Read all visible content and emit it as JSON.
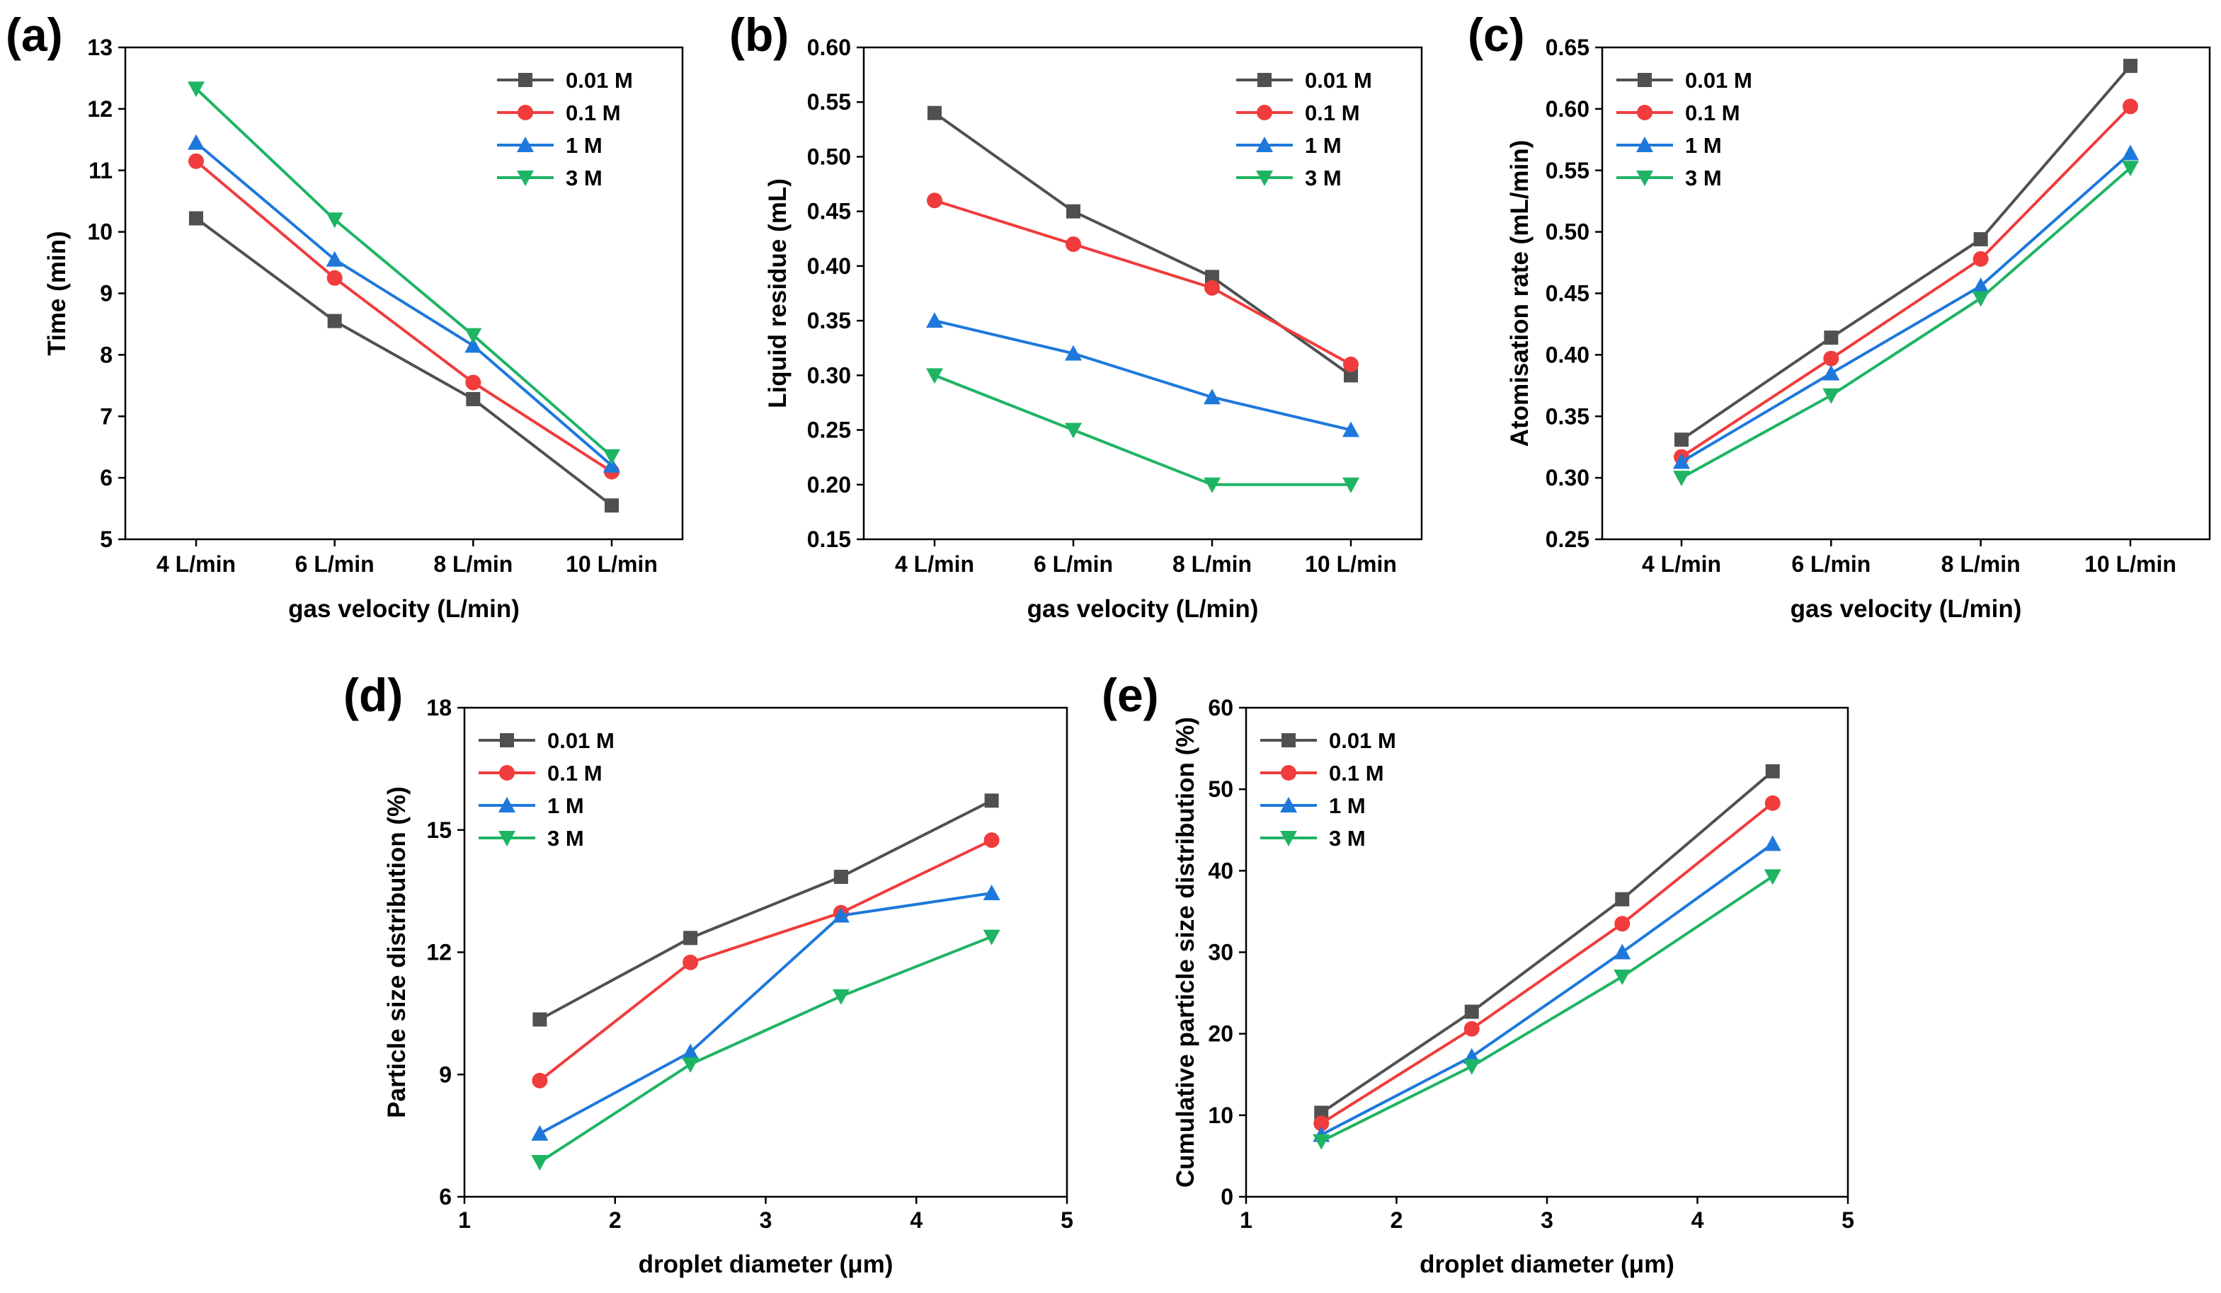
{
  "figure": {
    "colors": {
      "0.01 M": "#505050",
      "0.1 M": "#f03c3c",
      "1 M": "#1e78dc",
      "3 M": "#1eb464"
    },
    "markers": {
      "0.01 M": "square",
      "0.1 M": "circle",
      "1 M": "triangle-up",
      "3 M": "triangle-down"
    }
  },
  "chart_data": [
    {
      "id": "a",
      "panel_label": "(a)",
      "type": "line",
      "categories": [
        "4 L/min",
        "6 L/min",
        "8 L/min",
        "10 L/min"
      ],
      "xlabel": "gas velocity (L/min)",
      "ylabel": "Time (min)",
      "ylim": [
        5,
        13
      ],
      "yticks": [
        "5",
        "6",
        "7",
        "8",
        "9",
        "10",
        "11",
        "12",
        "13"
      ],
      "legend_position": "top-right",
      "series": [
        {
          "name": "0.01 M",
          "values": [
            10.22,
            8.55,
            7.28,
            5.55
          ]
        },
        {
          "name": "0.1 M",
          "values": [
            11.15,
            9.25,
            7.55,
            6.1
          ]
        },
        {
          "name": "1 M",
          "values": [
            11.45,
            9.55,
            8.15,
            6.2
          ]
        },
        {
          "name": "3 M",
          "values": [
            12.33,
            10.2,
            8.32,
            6.35
          ]
        }
      ]
    },
    {
      "id": "b",
      "panel_label": "(b)",
      "type": "line",
      "categories": [
        "4 L/min",
        "6 L/min",
        "8 L/min",
        "10 L/min"
      ],
      "xlabel": "gas velocity (L/min)",
      "ylabel": "Liquid residue (mL)",
      "ylim": [
        0.15,
        0.6
      ],
      "yticks": [
        "0.15",
        "0.20",
        "0.25",
        "0.30",
        "0.35",
        "0.40",
        "0.45",
        "0.50",
        "0.55",
        "0.60"
      ],
      "legend_position": "top-right",
      "series": [
        {
          "name": "0.01 M",
          "values": [
            0.54,
            0.45,
            0.39,
            0.3
          ]
        },
        {
          "name": "0.1 M",
          "values": [
            0.46,
            0.42,
            0.38,
            0.31
          ]
        },
        {
          "name": "1 M",
          "values": [
            0.35,
            0.32,
            0.28,
            0.25
          ]
        },
        {
          "name": "3 M",
          "values": [
            0.3,
            0.25,
            0.2,
            0.2
          ]
        }
      ]
    },
    {
      "id": "c",
      "panel_label": "(c)",
      "type": "line",
      "categories": [
        "4 L/min",
        "6 L/min",
        "8 L/min",
        "10 L/min"
      ],
      "xlabel": "gas velocity (L/min)",
      "ylabel": "Atomisation rate (mL/min)",
      "ylim": [
        0.25,
        0.65
      ],
      "yticks": [
        "0.25",
        "0.30",
        "0.35",
        "0.40",
        "0.45",
        "0.50",
        "0.55",
        "0.60",
        "0.65"
      ],
      "legend_position": "top-left",
      "series": [
        {
          "name": "0.01 M",
          "values": [
            0.331,
            0.414,
            0.494,
            0.635
          ]
        },
        {
          "name": "0.1 M",
          "values": [
            0.317,
            0.397,
            0.478,
            0.602
          ]
        },
        {
          "name": "1 M",
          "values": [
            0.313,
            0.385,
            0.456,
            0.564
          ]
        },
        {
          "name": "3 M",
          "values": [
            0.3,
            0.367,
            0.446,
            0.552
          ]
        }
      ]
    },
    {
      "id": "d",
      "panel_label": "(d)",
      "type": "line",
      "x": [
        1.5,
        2.5,
        3.5,
        4.5
      ],
      "xlim": [
        1,
        5
      ],
      "xticks": [
        "1",
        "2",
        "3",
        "4",
        "5"
      ],
      "xlabel": "droplet diameter (μm)",
      "ylabel": "Particle size distribution (%)",
      "ylim": [
        6,
        18
      ],
      "yticks": [
        "6",
        "9",
        "12",
        "15",
        "18"
      ],
      "legend_position": "top-left",
      "series": [
        {
          "name": "0.01 M",
          "values": [
            10.35,
            12.35,
            13.85,
            15.72
          ]
        },
        {
          "name": "0.1 M",
          "values": [
            8.85,
            11.75,
            12.97,
            14.75
          ]
        },
        {
          "name": "1 M",
          "values": [
            7.55,
            9.55,
            12.9,
            13.45
          ]
        },
        {
          "name": "3 M",
          "values": [
            6.85,
            9.25,
            10.92,
            12.38
          ]
        }
      ]
    },
    {
      "id": "e",
      "panel_label": "(e)",
      "type": "line",
      "x": [
        1.5,
        2.5,
        3.5,
        4.5
      ],
      "xlim": [
        1,
        5
      ],
      "xticks": [
        "1",
        "2",
        "3",
        "4",
        "5"
      ],
      "xlabel": "droplet diameter (μm)",
      "ylabel": "Cumulative particle size distribution (%)",
      "ylim": [
        0,
        60
      ],
      "yticks": [
        "0",
        "10",
        "20",
        "30",
        "40",
        "50",
        "60"
      ],
      "legend_position": "top-left",
      "series": [
        {
          "name": "0.01 M",
          "values": [
            10.3,
            22.7,
            36.5,
            52.2
          ]
        },
        {
          "name": "0.1 M",
          "values": [
            9.0,
            20.6,
            33.5,
            48.3
          ]
        },
        {
          "name": "1 M",
          "values": [
            7.6,
            17.2,
            30.0,
            43.3
          ]
        },
        {
          "name": "3 M",
          "values": [
            6.8,
            16.0,
            27.0,
            39.3
          ]
        }
      ]
    }
  ]
}
